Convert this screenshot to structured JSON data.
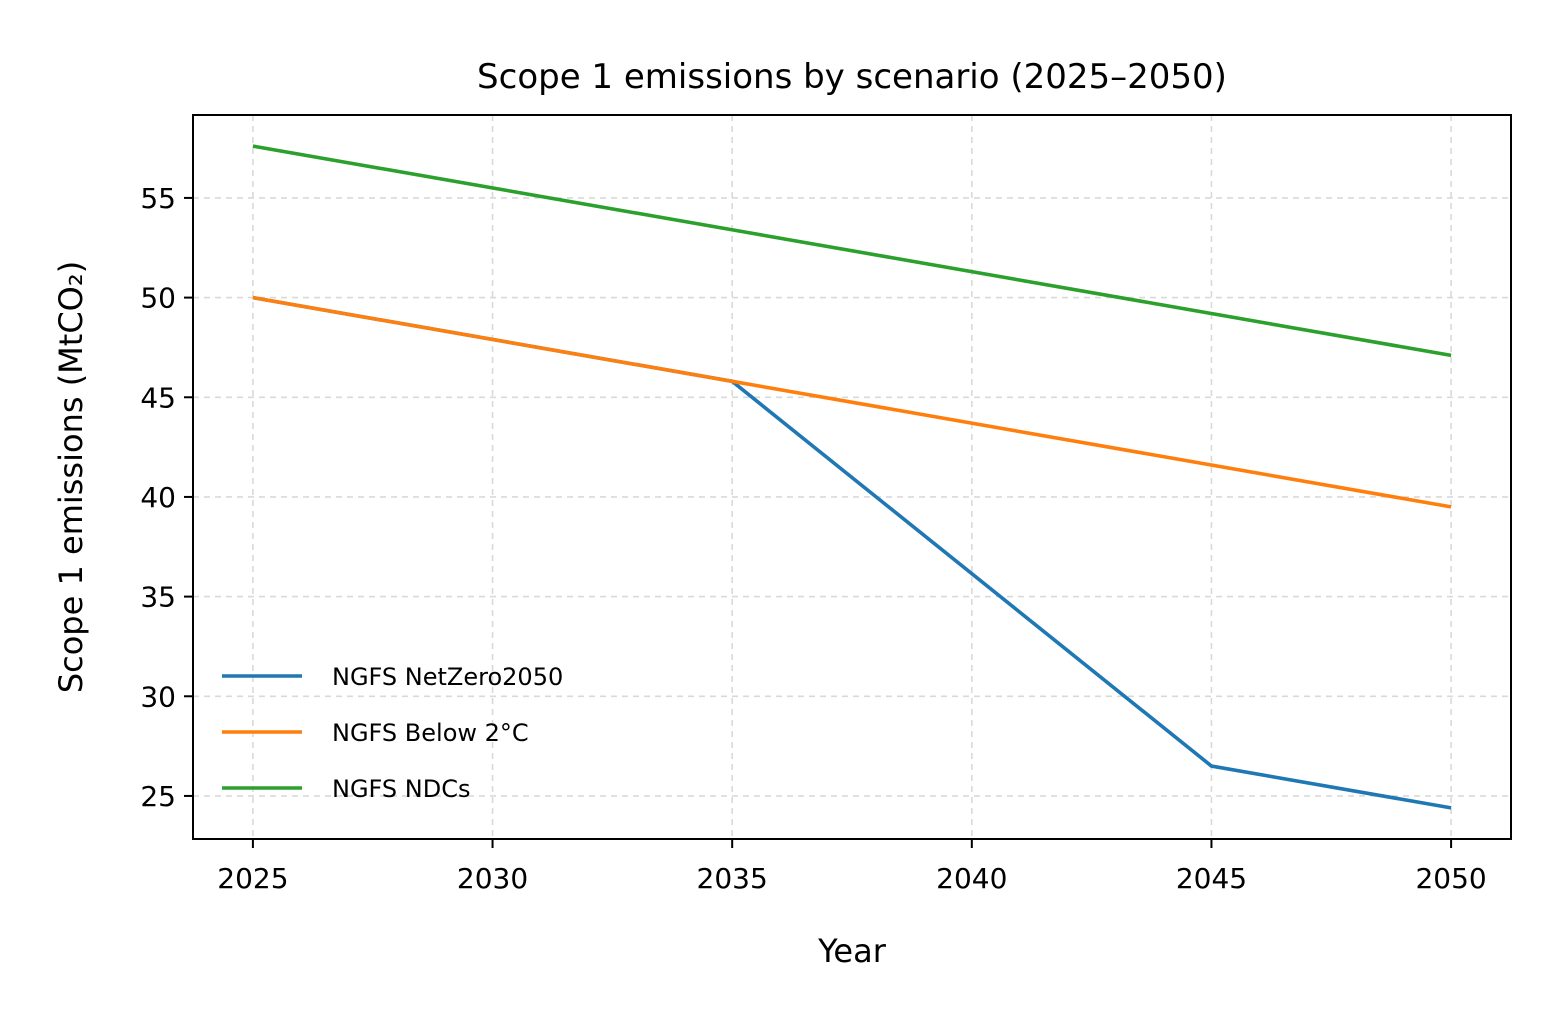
{
  "chart_data": {
    "type": "line",
    "title": "Scope 1 emissions by scenario (2025–2050)",
    "xlabel": "Year",
    "ylabel": "Scope 1 emissions (MtCO₂)",
    "x": [
      2025,
      2035,
      2045,
      2050
    ],
    "xlim": [
      2023.75,
      2051.25
    ],
    "ylim": [
      22.84,
      59.16
    ],
    "xticks": [
      2025,
      2030,
      2035,
      2040,
      2045,
      2050
    ],
    "yticks": [
      25,
      30,
      35,
      40,
      45,
      50,
      55
    ],
    "grid": true,
    "legend_position": "lower-left",
    "series": [
      {
        "name": "NGFS NetZero2050",
        "color": "#1f77b4",
        "x": [
          2025,
          2035,
          2045,
          2050
        ],
        "values": [
          50.0,
          45.8,
          26.5,
          24.4
        ]
      },
      {
        "name": "NGFS Below 2°C",
        "color": "#ff7f0e",
        "x": [
          2025,
          2035,
          2050
        ],
        "values": [
          50.0,
          45.8,
          39.5
        ]
      },
      {
        "name": "NGFS NDCs",
        "color": "#2ca02c",
        "x": [
          2025,
          2050
        ],
        "values": [
          57.6,
          47.1
        ]
      }
    ]
  }
}
